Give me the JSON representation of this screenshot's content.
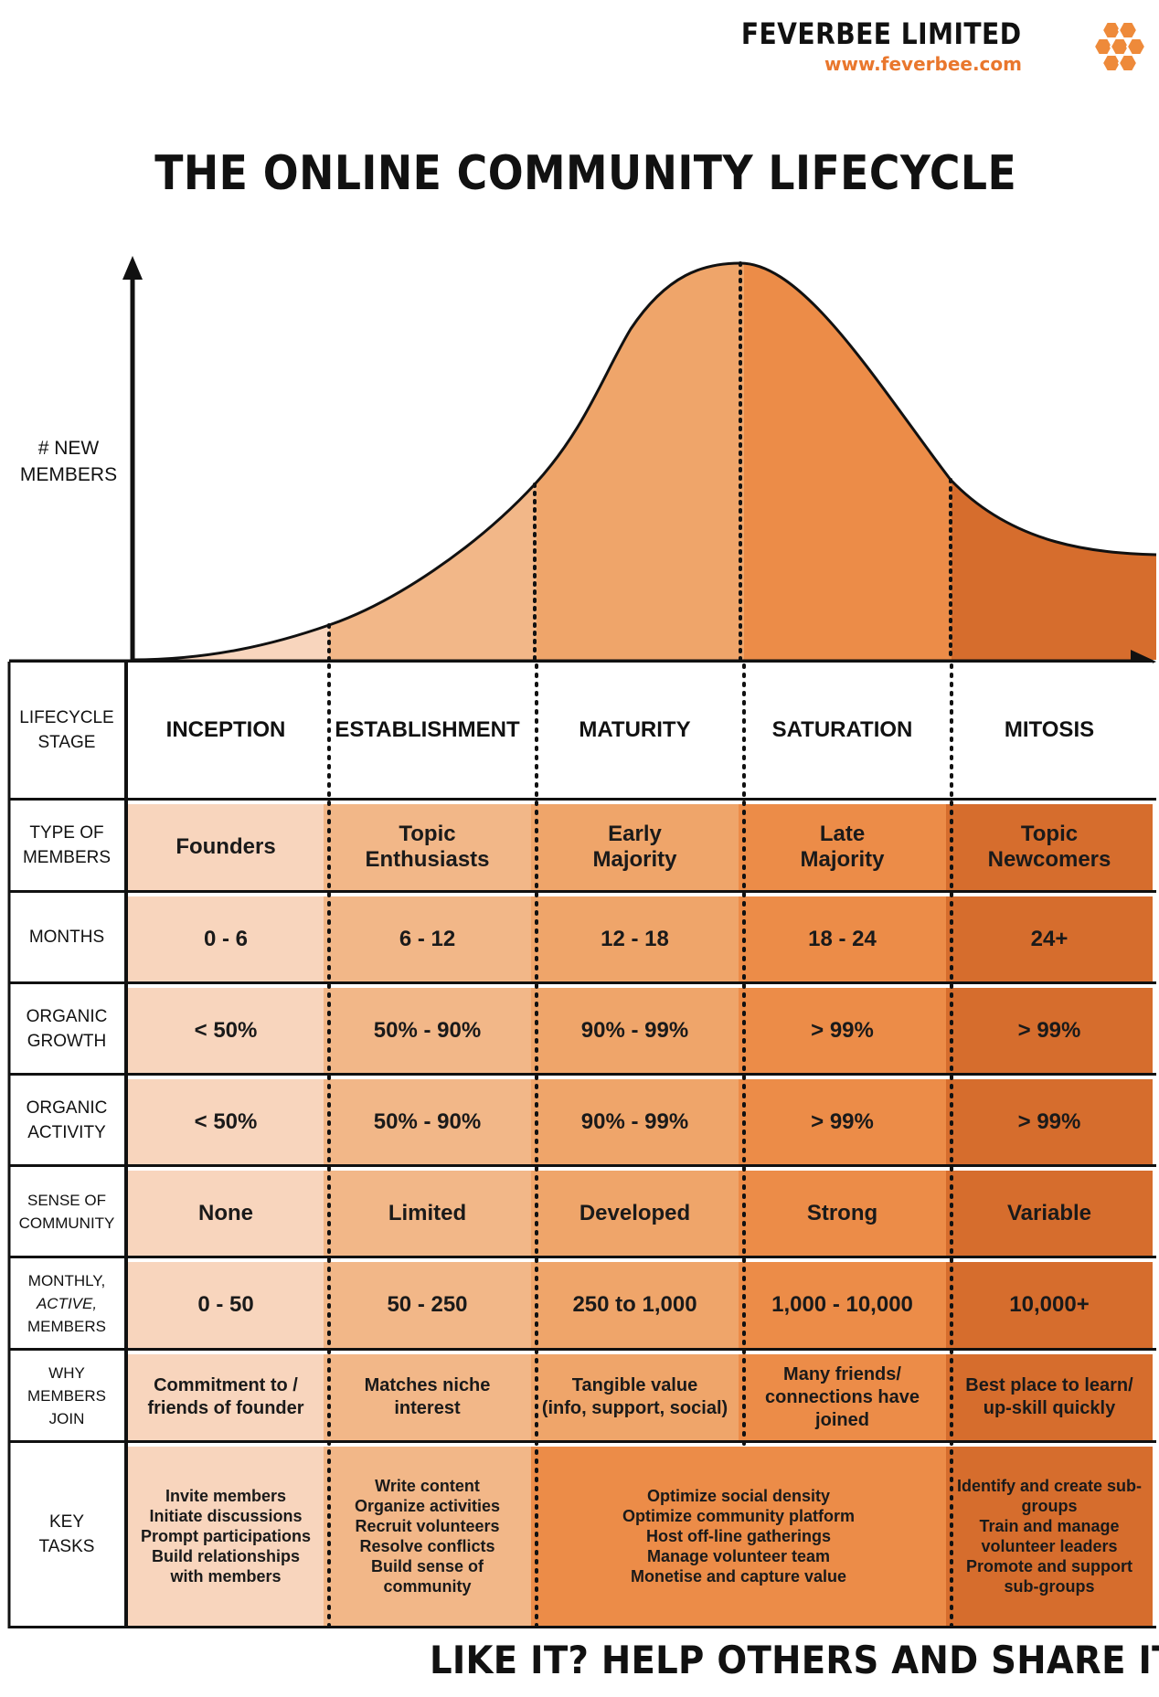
{
  "brand": {
    "name": "FEVERBEE LIMITED",
    "url": "www.feverbee.com",
    "accent": "#e9772d"
  },
  "title": "THE ONLINE COMMUNITY LIFECYCLE",
  "y_axis_label_line1": "# NEW",
  "y_axis_label_line2": "MEMBERS",
  "colors": [
    "#f8d5bd",
    "#f2b788",
    "#efa56a",
    "#ec8c48",
    "#d66d2d"
  ],
  "rows": {
    "stage": {
      "label_line1": "LIFECYCLE",
      "label_line2": "STAGE",
      "values": [
        "INCEPTION",
        "ESTABLISHMENT",
        "MATURITY",
        "SATURATION",
        "MITOSIS"
      ]
    },
    "type": {
      "label_line1": "TYPE OF",
      "label_line2": "MEMBERS",
      "values": [
        [
          "Founders"
        ],
        [
          "Topic",
          "Enthusiasts"
        ],
        [
          "Early",
          "Majority"
        ],
        [
          "Late",
          "Majority"
        ],
        [
          "Topic",
          "Newcomers"
        ]
      ]
    },
    "months": {
      "label": "MONTHS",
      "values": [
        "0 - 6",
        "6 - 12",
        "12 - 18",
        "18 - 24",
        "24+"
      ]
    },
    "growth": {
      "label_line1": "ORGANIC",
      "label_line2": "GROWTH",
      "values": [
        "< 50%",
        "50% - 90%",
        "90% - 99%",
        "> 99%",
        "> 99%"
      ]
    },
    "activity": {
      "label_line1": "ORGANIC",
      "label_line2": "ACTIVITY",
      "values": [
        "< 50%",
        "50% - 90%",
        "90% - 99%",
        "> 99%",
        "> 99%"
      ]
    },
    "sense": {
      "label_line1": "SENSE OF",
      "label_line2": "COMMUNITY",
      "values": [
        "None",
        "Limited",
        "Developed",
        "Strong",
        "Variable"
      ]
    },
    "active": {
      "label_line1": "MONTHLY,",
      "label_line2": "ACTIVE,",
      "label_line3": "MEMBERS",
      "values": [
        "0 - 50",
        "50 - 250",
        "250 to 1,000",
        "1,000 - 10,000",
        "10,000+"
      ]
    },
    "join": {
      "label_line1": "WHY",
      "label_line2": "MEMBERS",
      "label_line3": "JOIN",
      "values": [
        [
          "Commitment to /",
          "friends of founder"
        ],
        [
          "Matches niche",
          "interest"
        ],
        [
          "Tangible value",
          "(info, support, social)"
        ],
        [
          "Many friends/",
          "connections have",
          "joined"
        ],
        [
          "Best place to learn/",
          "up-skill quickly"
        ]
      ]
    },
    "tasks": {
      "label_line1": "KEY",
      "label_line2": "TASKS",
      "inception": [
        "Invite members",
        "Initiate discussions",
        "Prompt participations",
        "Build relationships",
        "with members"
      ],
      "establishment": [
        "Write content",
        "Organize activities",
        "Recruit volunteers",
        "Resolve conflicts",
        "Build sense of",
        "community"
      ],
      "maturity_saturation": [
        "Optimize social density",
        "Optimize community platform",
        "Host off-line gatherings",
        "Manage volunteer team",
        "Monetise and capture value"
      ],
      "mitosis": [
        "Identify and create sub-",
        "groups",
        "Train and manage",
        "volunteer leaders",
        "Promote and support",
        "sub-groups"
      ]
    }
  },
  "cta": "LIKE IT? HELP OTHERS AND SHARE IT"
}
